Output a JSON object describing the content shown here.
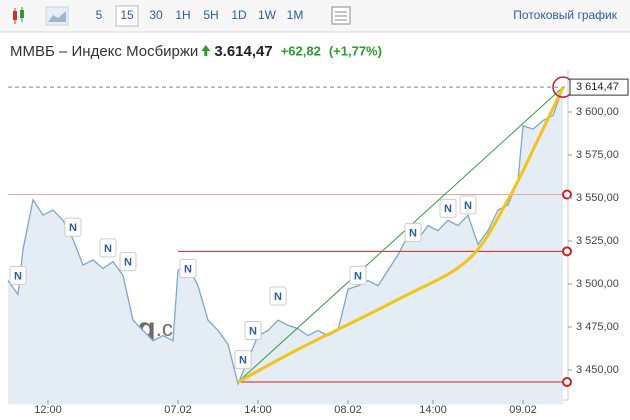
{
  "toolbar": {
    "intervals": [
      "5",
      "15",
      "30",
      "1H",
      "5H",
      "1D",
      "1W",
      "1M"
    ],
    "selected": 1,
    "streaming_link": "Потоковый график"
  },
  "header": {
    "name": "ММВБ – Индекс Мосбиржи",
    "price": "3.614,47",
    "change": "+62,82",
    "change_percent": "(+1,77%)"
  },
  "chart_data": {
    "type": "area",
    "color": "#7ea6cf",
    "fill": "#e4ecf4",
    "x": [
      0,
      2,
      3,
      5,
      7,
      9,
      11,
      13,
      15,
      17,
      19,
      21,
      23,
      25,
      27,
      29,
      31,
      33,
      34,
      36,
      38,
      40,
      42,
      44,
      46,
      48,
      50,
      52,
      54,
      56,
      58,
      60,
      62,
      64,
      66,
      68,
      70,
      72,
      74,
      76,
      78,
      80,
      82,
      84,
      86,
      88,
      90,
      92,
      94,
      96,
      98,
      100,
      102,
      103,
      105,
      107,
      109,
      111
    ],
    "values": [
      3502,
      3494,
      3520,
      3549,
      3540,
      3543,
      3537,
      3526,
      3511,
      3514,
      3509,
      3513,
      3505,
      3479,
      3473,
      3467,
      3470,
      3467,
      3508,
      3511,
      3499,
      3479,
      3473,
      3465,
      3442,
      3456,
      3470,
      3473,
      3479,
      3476,
      3474,
      3470,
      3473,
      3470,
      3473,
      3497,
      3499,
      3502,
      3499,
      3508,
      3517,
      3528,
      3526,
      3534,
      3531,
      3537,
      3534,
      3540,
      3523,
      3531,
      3543,
      3546,
      3560,
      3592,
      3590,
      3595,
      3598,
      3614.47
    ],
    "xlim": [
      0,
      112
    ],
    "ylim": [
      3430,
      3625
    ],
    "xticks": [
      {
        "value": 8,
        "label": "12:00"
      },
      {
        "value": 34,
        "label": "07.02"
      },
      {
        "value": 50,
        "label": "14:00"
      },
      {
        "value": 68,
        "label": "08.02"
      },
      {
        "value": 85,
        "label": "14:00"
      },
      {
        "value": 103,
        "label": "09.02"
      }
    ],
    "yticks": [
      {
        "value": 3450,
        "label": "3 450,00"
      },
      {
        "value": 3475,
        "label": "3 475,00"
      },
      {
        "value": 3500,
        "label": "3 500,00"
      },
      {
        "value": 3525,
        "label": "3 525,00"
      },
      {
        "value": 3550,
        "label": "3 550,00"
      },
      {
        "value": 3575,
        "label": "3 575,00"
      },
      {
        "value": 3600,
        "label": "3 600,00"
      }
    ],
    "last_price": {
      "value": 3614.47,
      "label": "3 614,47"
    },
    "news": {
      "label": "N",
      "x": [
        2,
        13,
        20,
        24,
        36,
        49,
        47,
        54,
        70,
        81,
        88,
        92
      ],
      "y": [
        3505,
        3533,
        3521,
        3513,
        3509,
        3473,
        3456,
        3493,
        3505,
        3530,
        3544,
        3546
      ]
    },
    "hlines": [
      {
        "value": 3552,
        "x_start": 0,
        "color": "#eaa9a9"
      },
      {
        "value": 3519,
        "x_start": 34,
        "color": "#d42020"
      },
      {
        "value": 3443,
        "x_start": 46,
        "color": "#d42020"
      }
    ],
    "trendline": {
      "x": [
        46,
        111
      ],
      "values": [
        3443,
        3614.47
      ],
      "color": "#2e9e3e"
    },
    "curve": {
      "x": [
        46,
        58,
        78,
        92,
        100,
        106,
        111
      ],
      "values": [
        3443,
        3462,
        3491,
        3514,
        3549,
        3584,
        3614.47
      ],
      "color": "#f5c21a"
    },
    "watermark": [
      "Investing",
      ".com"
    ]
  }
}
